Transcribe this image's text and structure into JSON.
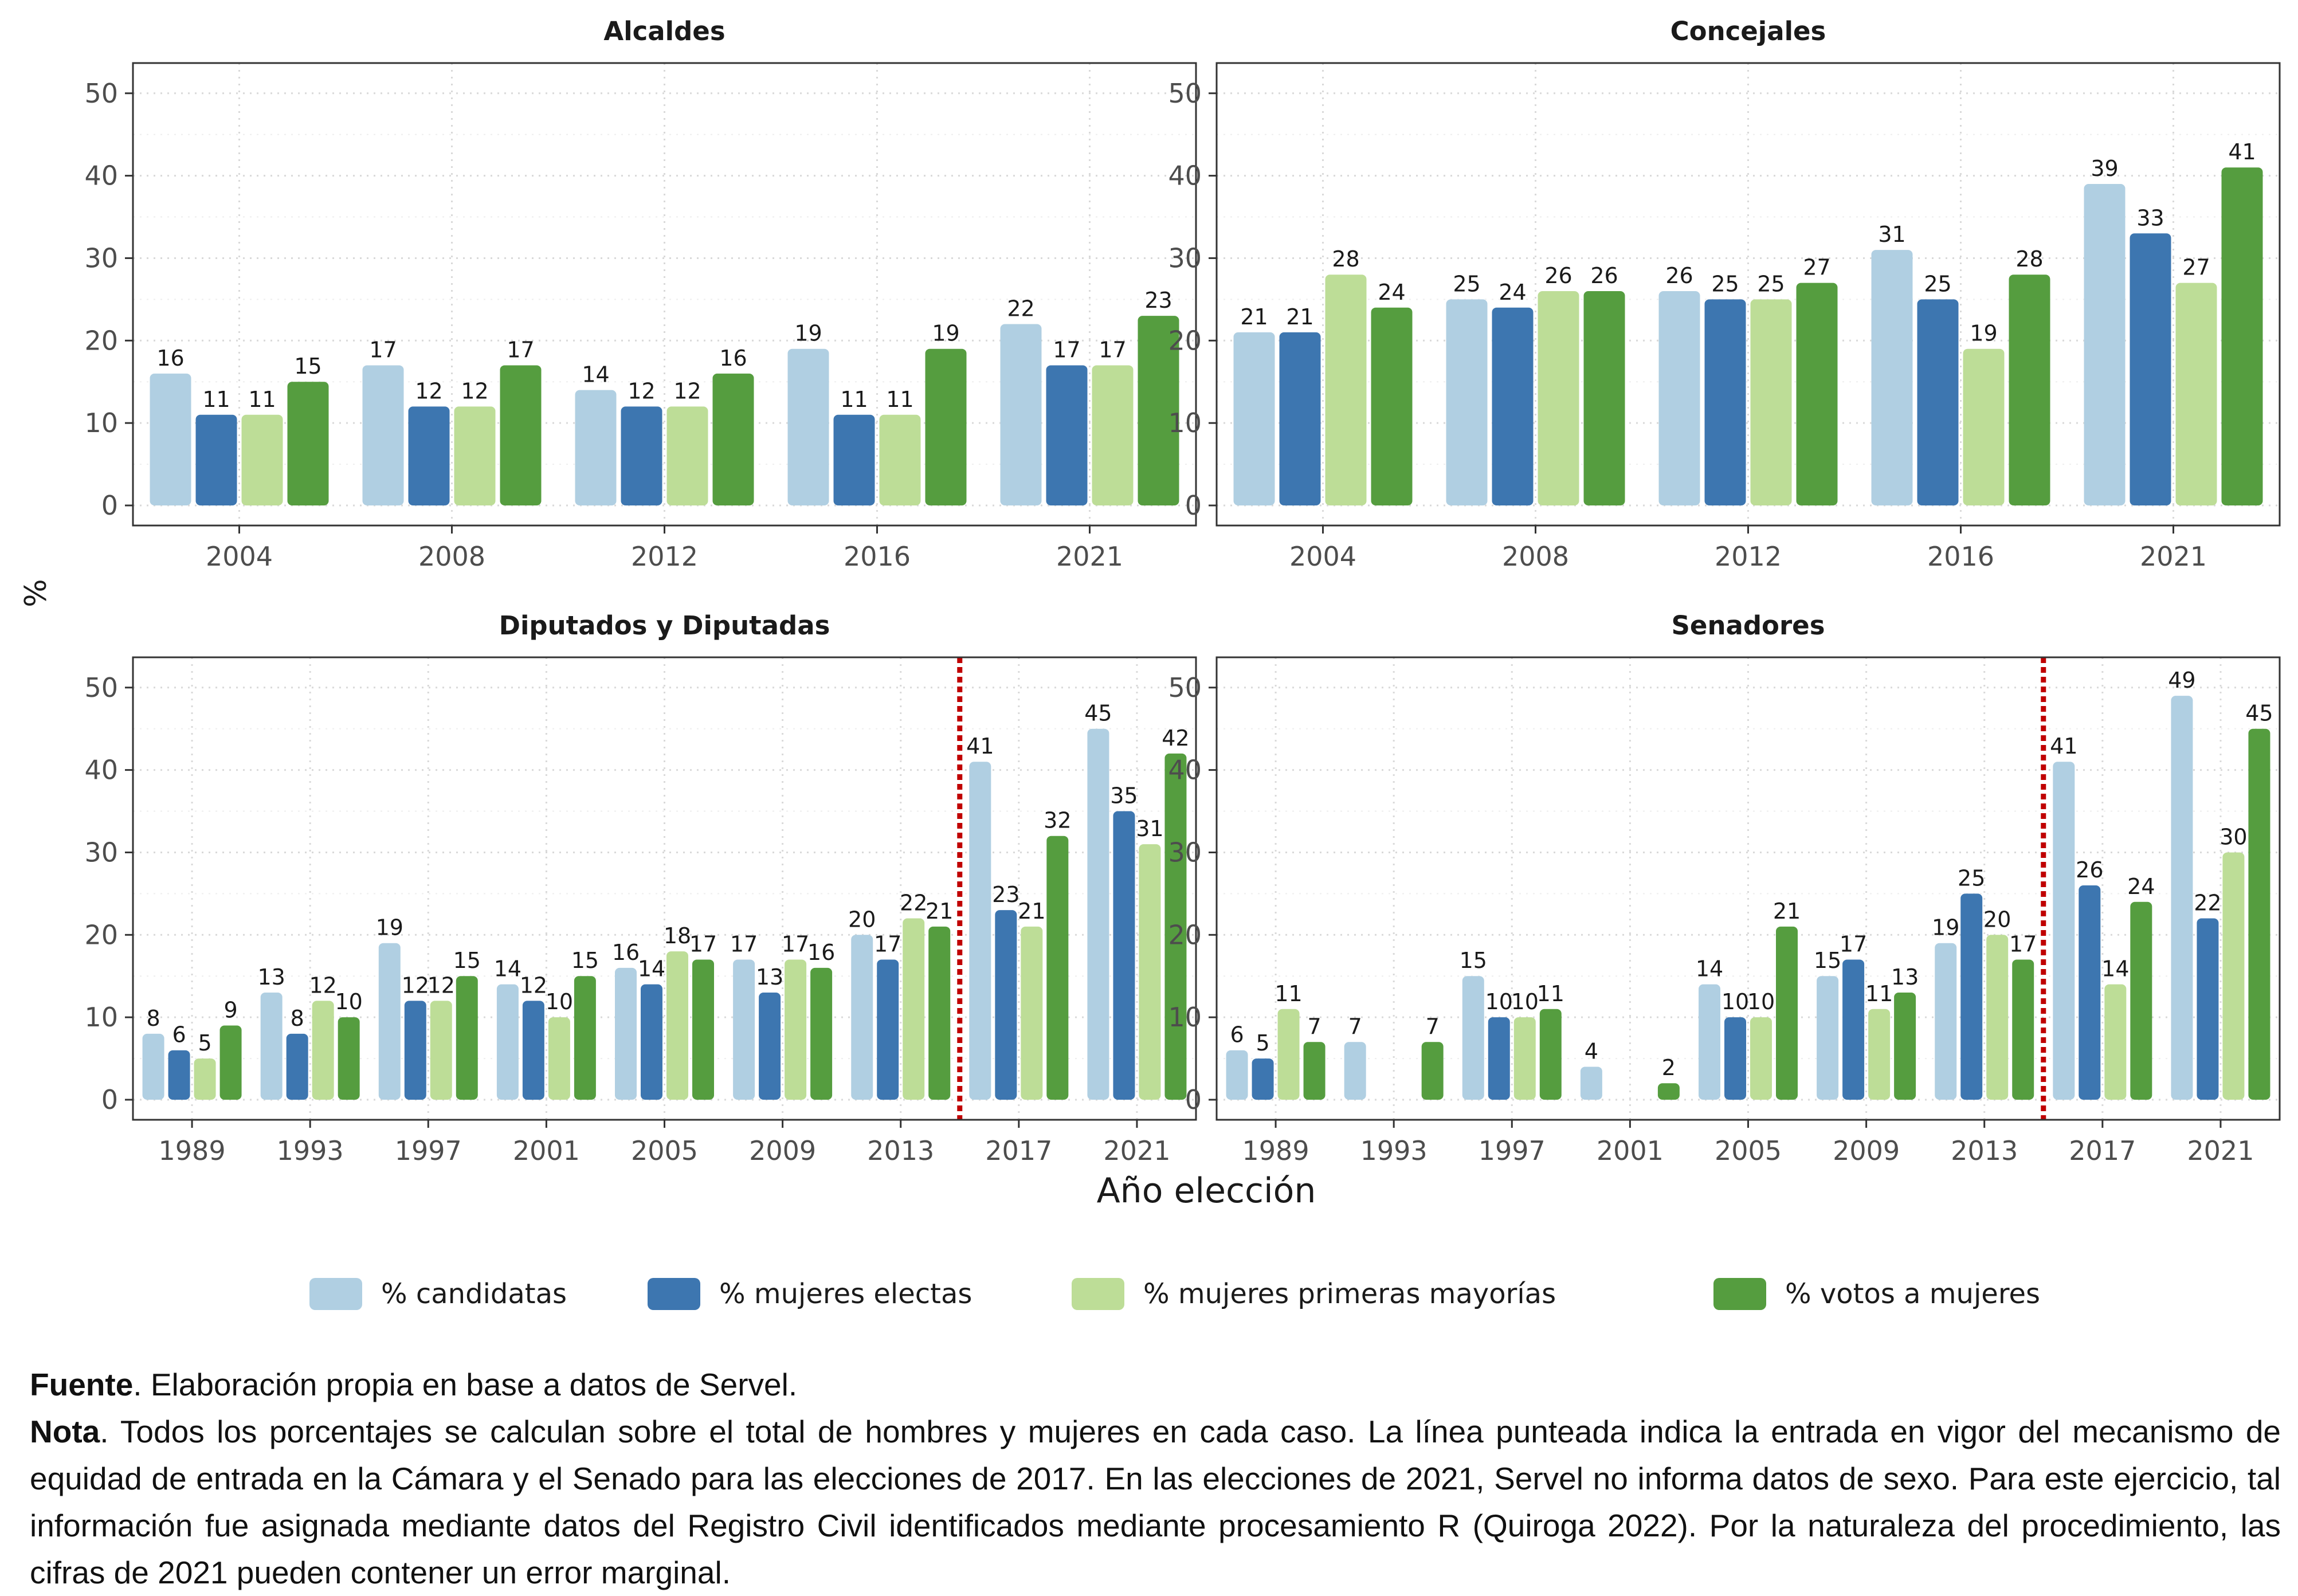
{
  "colors": {
    "candidatas": "#b0cfe2",
    "electas": "#3d76b0",
    "primeras": "#bddd97",
    "votos": "#559d3f",
    "reform_line": "#c00000",
    "axis_text": "#4d4d4d",
    "grid": "#d9d9d9"
  },
  "chart_data": [
    {
      "type": "bar",
      "title": "Alcaldes",
      "categories": [
        "2004",
        "2008",
        "2012",
        "2016",
        "2021"
      ],
      "ylim": [
        0,
        52
      ],
      "yticks": [
        0,
        10,
        20,
        30,
        40,
        50
      ],
      "series": [
        {
          "name": "% candidatas",
          "values": [
            16,
            17,
            14,
            19,
            22
          ]
        },
        {
          "name": "% mujeres electas",
          "values": [
            11,
            12,
            12,
            11,
            17
          ]
        },
        {
          "name": "% mujeres primeras mayorías",
          "values": [
            11,
            12,
            12,
            11,
            17
          ]
        },
        {
          "name": "% votos a mujeres",
          "values": [
            15,
            17,
            16,
            19,
            23
          ]
        }
      ]
    },
    {
      "type": "bar",
      "title": "Concejales",
      "categories": [
        "2004",
        "2008",
        "2012",
        "2016",
        "2021"
      ],
      "ylim": [
        0,
        52
      ],
      "yticks": [
        0,
        10,
        20,
        30,
        40,
        50
      ],
      "series": [
        {
          "name": "% candidatas",
          "values": [
            21,
            25,
            26,
            31,
            39
          ]
        },
        {
          "name": "% mujeres electas",
          "values": [
            21,
            24,
            25,
            25,
            33
          ]
        },
        {
          "name": "% mujeres primeras mayorías",
          "values": [
            28,
            26,
            25,
            19,
            27
          ]
        },
        {
          "name": "% votos a mujeres",
          "values": [
            24,
            26,
            27,
            28,
            41
          ]
        }
      ]
    },
    {
      "type": "bar",
      "title": "Diputados y Diputadas",
      "categories": [
        "1989",
        "1993",
        "1997",
        "2001",
        "2005",
        "2009",
        "2013",
        "2017",
        "2021"
      ],
      "ylim": [
        0,
        52
      ],
      "yticks": [
        0,
        10,
        20,
        30,
        40,
        50
      ],
      "reform_after": "2013",
      "series": [
        {
          "name": "% candidatas",
          "values": [
            8,
            13,
            19,
            14,
            16,
            17,
            20,
            41,
            45
          ]
        },
        {
          "name": "% mujeres electas",
          "values": [
            6,
            8,
            12,
            12,
            14,
            13,
            17,
            23,
            35
          ]
        },
        {
          "name": "% mujeres primeras mayorías",
          "values": [
            5,
            12,
            12,
            10,
            18,
            17,
            22,
            21,
            31
          ]
        },
        {
          "name": "% votos a mujeres",
          "values": [
            9,
            10,
            15,
            15,
            17,
            16,
            21,
            32,
            42
          ]
        }
      ]
    },
    {
      "type": "bar",
      "title": "Senadores",
      "categories": [
        "1989",
        "1993",
        "1997",
        "2001",
        "2005",
        "2009",
        "2013",
        "2017",
        "2021"
      ],
      "ylim": [
        0,
        52
      ],
      "yticks": [
        0,
        10,
        20,
        30,
        40,
        50
      ],
      "reform_after": "2013",
      "series": [
        {
          "name": "% candidatas",
          "values": [
            6,
            7,
            15,
            4,
            14,
            15,
            19,
            41,
            49
          ]
        },
        {
          "name": "% mujeres electas",
          "values": [
            5,
            null,
            10,
            null,
            10,
            17,
            25,
            26,
            22
          ]
        },
        {
          "name": "% mujeres primeras mayorías",
          "values": [
            11,
            null,
            10,
            null,
            10,
            11,
            20,
            14,
            30
          ]
        },
        {
          "name": "% votos a mujeres",
          "values": [
            7,
            7,
            11,
            2,
            21,
            13,
            17,
            24,
            45
          ]
        }
      ]
    }
  ],
  "axes": {
    "ylabel": "%",
    "xlabel": "Año elección"
  },
  "legend": {
    "position": "bottom",
    "items": [
      {
        "label": "% candidatas",
        "color": "#b0cfe2"
      },
      {
        "label": "% mujeres electas",
        "color": "#3d76b0"
      },
      {
        "label": "% mujeres primeras mayorías",
        "color": "#bddd97"
      },
      {
        "label": "% votos a mujeres",
        "color": "#559d3f"
      }
    ]
  },
  "notes": {
    "fuente_label": "Fuente",
    "fuente_text": ". Elaboración propia en base a datos de Servel.",
    "nota_label": "Nota",
    "nota_text": ". Todos los porcentajes se calculan sobre el total de hombres y mujeres en cada caso. La línea punteada indica la entrada en vigor del mecanismo de equidad de entrada en la Cámara y el Senado para las elecciones de 2017. En las elecciones de 2021, Servel no informa datos de sexo. Para este ejercicio, tal información fue asignada mediante datos del Registro Civil identificados mediante procesamiento R (Quiroga 2022). Por la naturaleza del procedimiento, las cifras de 2021 pueden contener un error marginal."
  }
}
